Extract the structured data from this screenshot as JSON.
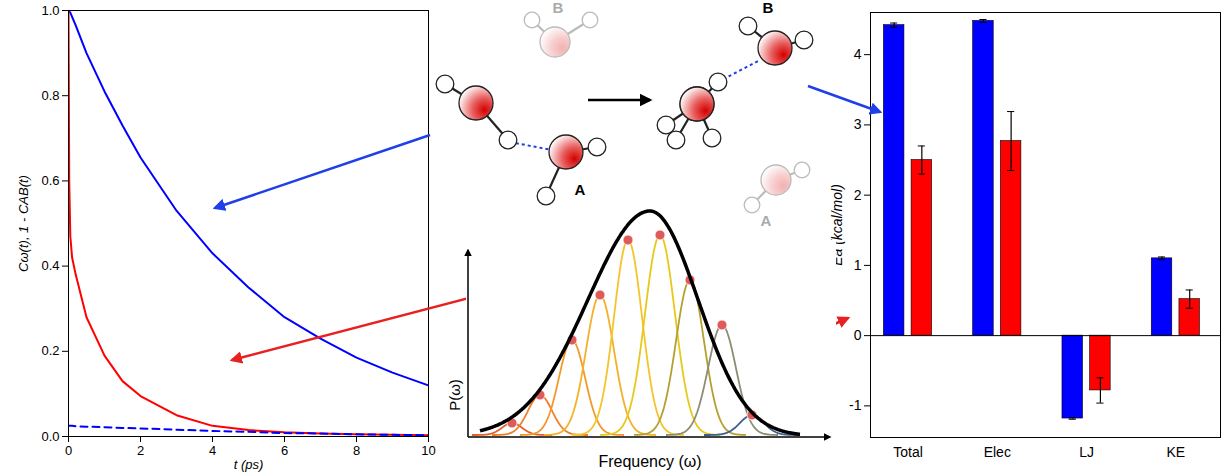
{
  "chart_data": [
    {
      "type": "line",
      "x_label": "t (ps)",
      "y_label": "Cω(t), 1 - CAB(t)",
      "x": [
        0,
        0.02,
        0.05,
        0.1,
        0.2,
        0.5,
        1,
        1.5,
        2,
        3,
        4,
        5,
        6,
        7,
        8,
        9,
        10
      ],
      "xlim": [
        0,
        10
      ],
      "ylim": [
        0,
        1
      ],
      "xticks": [
        0,
        2,
        4,
        6,
        8,
        10
      ],
      "yticks": [
        {
          "value": 0,
          "label": "0.0"
        },
        {
          "value": 0.2,
          "label": "0.2"
        },
        {
          "value": 0.4,
          "label": "0.4"
        },
        {
          "value": 0.6,
          "label": "0.6"
        },
        {
          "value": 0.8,
          "label": "0.8"
        },
        {
          "value": 1,
          "label": "1.0"
        }
      ],
      "series": [
        {
          "color": "#0000ff",
          "line_style": "solid",
          "values": [
            1,
            0.998,
            0.995,
            0.985,
            0.965,
            0.9,
            0.81,
            0.73,
            0.655,
            0.53,
            0.43,
            0.35,
            0.28,
            0.23,
            0.185,
            0.15,
            0.12
          ]
        },
        {
          "color": "#ff0000",
          "line_style": "solid",
          "values": [
            1,
            0.6,
            0.47,
            0.42,
            0.38,
            0.28,
            0.19,
            0.13,
            0.095,
            0.05,
            0.025,
            0.015,
            0.01,
            0.007,
            0.005,
            0.004,
            0.003
          ]
        },
        {
          "color": "#0000ff",
          "line_style": "dashed",
          "values": [
            0.025,
            0.025,
            0.025,
            0.025,
            0.024,
            0.023,
            0.022,
            0.02,
            0.019,
            0.016,
            0.013,
            0.011,
            0.008,
            0.007,
            0.005,
            0.004,
            0.003
          ]
        }
      ]
    },
    {
      "type": "bar",
      "y_label": "Ea (kcal/mol)",
      "categories": [
        "Total",
        "Elec",
        "LJ",
        "KE"
      ],
      "ylim": [
        -1.45,
        4.6
      ],
      "yticks": [
        -1,
        0,
        1,
        2,
        3,
        4
      ],
      "series": [
        {
          "color": "#0000ff",
          "values": [
            4.42,
            4.48,
            -1.18,
            1.1
          ],
          "errors": [
            0.03,
            0.02,
            0.01,
            0.02
          ]
        },
        {
          "color": "#ff0000",
          "values": [
            2.5,
            2.77,
            -0.78,
            0.52
          ],
          "errors": [
            0.2,
            0.42,
            0.18,
            0.13
          ]
        }
      ]
    }
  ],
  "diagram": {
    "molecules": {
      "a": "A",
      "b": "B"
    },
    "distribution": {
      "y_axis": "P(ω)",
      "x_axis": "Frequency (ω)"
    }
  }
}
